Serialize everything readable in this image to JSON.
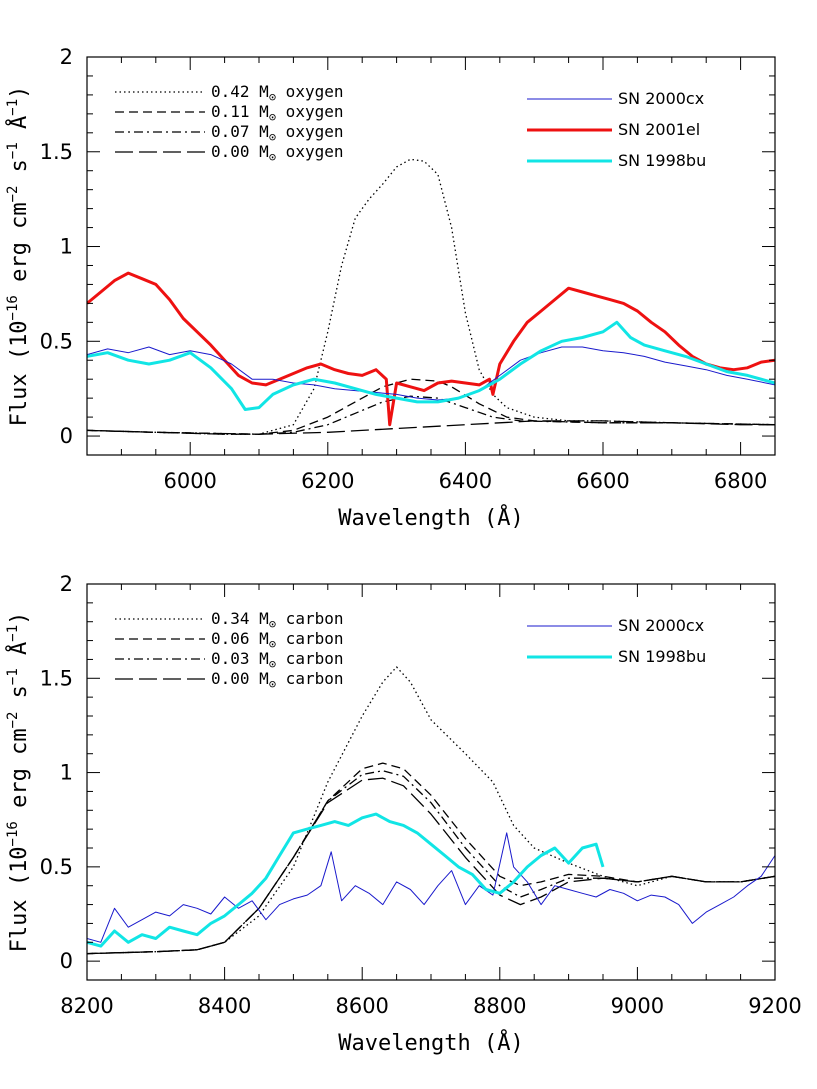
{
  "chart_data": [
    {
      "type": "line",
      "xlabel": "Wavelength (Å)",
      "ylabel_parts": [
        "Flux (10",
        "−16",
        " erg cm",
        "−2",
        " s",
        "−1",
        " Å",
        "−1",
        ")"
      ],
      "xlim": [
        5850,
        6850
      ],
      "ylim": [
        -0.1,
        2.0
      ],
      "xticks_major": [
        6000,
        6200,
        6400,
        6600,
        6800
      ],
      "xticks_minor_step": 50,
      "yticks_major": [
        0,
        0.5,
        1,
        1.5,
        2
      ],
      "ytick_labels": [
        "0",
        "0.5",
        "1",
        "1.5",
        "2"
      ],
      "yticks_minor_step": 0.1,
      "xtick_labels": [
        "6000",
        "6200",
        "6400",
        "6600",
        "6800"
      ],
      "legend_models": [
        {
          "value": "0.42",
          "unit": "M",
          "element": "oxygen",
          "style": "dotted"
        },
        {
          "value": "0.11",
          "unit": "M",
          "element": "oxygen",
          "style": "dashed"
        },
        {
          "value": "0.07",
          "unit": "M",
          "element": "oxygen",
          "style": "dashdot"
        },
        {
          "value": "0.00",
          "unit": "M",
          "element": "oxygen",
          "style": "longdash"
        }
      ],
      "legend_observed": [
        {
          "name": "SN 2000cx",
          "color": "#1a1acc",
          "width": 1
        },
        {
          "name": "SN 2001el",
          "color": "#ee1111",
          "width": 3
        },
        {
          "name": "SN 1998bu",
          "color": "#11e5e5",
          "width": 3
        }
      ],
      "series": [
        {
          "label": "0.42 M⊙ oxygen",
          "style": "dotted",
          "color": "#000000",
          "x": [
            5850,
            5950,
            6050,
            6100,
            6150,
            6180,
            6200,
            6220,
            6240,
            6260,
            6280,
            6300,
            6320,
            6340,
            6360,
            6380,
            6400,
            6420,
            6440,
            6460,
            6500,
            6550,
            6600,
            6700,
            6850
          ],
          "y": [
            0.03,
            0.02,
            0.01,
            0.01,
            0.06,
            0.25,
            0.55,
            0.9,
            1.15,
            1.25,
            1.33,
            1.42,
            1.46,
            1.45,
            1.38,
            1.1,
            0.65,
            0.35,
            0.22,
            0.15,
            0.1,
            0.08,
            0.08,
            0.07,
            0.06
          ]
        },
        {
          "label": "0.11 M⊙ oxygen",
          "style": "dashed",
          "color": "#000000",
          "x": [
            5850,
            5950,
            6100,
            6150,
            6200,
            6240,
            6280,
            6320,
            6360,
            6380,
            6420,
            6460,
            6500,
            6600,
            6700,
            6850
          ],
          "y": [
            0.03,
            0.02,
            0.01,
            0.03,
            0.1,
            0.18,
            0.26,
            0.3,
            0.29,
            0.26,
            0.17,
            0.1,
            0.08,
            0.07,
            0.07,
            0.06
          ]
        },
        {
          "label": "0.07 M⊙ oxygen",
          "style": "dashdot",
          "color": "#000000",
          "x": [
            5850,
            5950,
            6100,
            6150,
            6200,
            6240,
            6280,
            6320,
            6360,
            6400,
            6440,
            6480,
            6600,
            6700,
            6850
          ],
          "y": [
            0.03,
            0.02,
            0.01,
            0.02,
            0.06,
            0.12,
            0.18,
            0.21,
            0.2,
            0.15,
            0.1,
            0.08,
            0.07,
            0.07,
            0.06
          ]
        },
        {
          "label": "0.00 M⊙ oxygen",
          "style": "longdash",
          "color": "#000000",
          "x": [
            5850,
            5950,
            6050,
            6100,
            6200,
            6300,
            6400,
            6500,
            6600,
            6700,
            6800,
            6850
          ],
          "y": [
            0.03,
            0.02,
            0.01,
            0.01,
            0.02,
            0.04,
            0.06,
            0.08,
            0.08,
            0.07,
            0.06,
            0.06
          ]
        },
        {
          "label": "SN 2001el",
          "style": "solid",
          "color": "#ee1111",
          "width": 3,
          "x": [
            5850,
            5870,
            5890,
            5910,
            5930,
            5950,
            5970,
            5990,
            6010,
            6030,
            6050,
            6070,
            6090,
            6110,
            6130,
            6150,
            6170,
            6190,
            6210,
            6230,
            6250,
            6270,
            6285,
            6290,
            6300,
            6320,
            6340,
            6360,
            6380,
            6400,
            6420,
            6435,
            6440,
            6450,
            6470,
            6490,
            6510,
            6530,
            6550,
            6570,
            6590,
            6610,
            6630,
            6650,
            6670,
            6690,
            6710,
            6730,
            6750,
            6770,
            6790,
            6810,
            6830,
            6850
          ],
          "y": [
            0.7,
            0.76,
            0.82,
            0.86,
            0.83,
            0.8,
            0.72,
            0.62,
            0.55,
            0.48,
            0.4,
            0.32,
            0.28,
            0.27,
            0.3,
            0.33,
            0.36,
            0.38,
            0.35,
            0.33,
            0.32,
            0.35,
            0.3,
            0.06,
            0.28,
            0.26,
            0.24,
            0.28,
            0.29,
            0.28,
            0.27,
            0.3,
            0.22,
            0.38,
            0.5,
            0.6,
            0.66,
            0.72,
            0.78,
            0.76,
            0.74,
            0.72,
            0.7,
            0.66,
            0.6,
            0.55,
            0.48,
            0.42,
            0.38,
            0.36,
            0.35,
            0.36,
            0.39,
            0.4
          ]
        },
        {
          "label": "SN 2000cx",
          "style": "solid",
          "color": "#1a1acc",
          "width": 1,
          "x": [
            5850,
            5880,
            5910,
            5940,
            5970,
            6000,
            6030,
            6060,
            6090,
            6120,
            6150,
            6180,
            6210,
            6240,
            6270,
            6300,
            6330,
            6360,
            6390,
            6420,
            6450,
            6480,
            6510,
            6540,
            6570,
            6600,
            6630,
            6660,
            6690,
            6720,
            6750,
            6780,
            6810,
            6850
          ],
          "y": [
            0.43,
            0.46,
            0.44,
            0.47,
            0.43,
            0.45,
            0.43,
            0.38,
            0.3,
            0.3,
            0.28,
            0.27,
            0.25,
            0.24,
            0.23,
            0.22,
            0.2,
            0.19,
            0.2,
            0.24,
            0.32,
            0.4,
            0.44,
            0.47,
            0.47,
            0.45,
            0.44,
            0.42,
            0.39,
            0.37,
            0.35,
            0.32,
            0.3,
            0.27
          ]
        },
        {
          "label": "SN 1998bu",
          "style": "solid",
          "color": "#11e5e5",
          "width": 3,
          "x": [
            5850,
            5880,
            5910,
            5940,
            5970,
            6000,
            6030,
            6060,
            6080,
            6100,
            6120,
            6150,
            6180,
            6210,
            6240,
            6270,
            6300,
            6330,
            6360,
            6390,
            6420,
            6450,
            6480,
            6510,
            6540,
            6570,
            6600,
            6620,
            6640,
            6660,
            6690,
            6720,
            6750,
            6780,
            6810,
            6850
          ],
          "y": [
            0.42,
            0.44,
            0.4,
            0.38,
            0.4,
            0.44,
            0.36,
            0.25,
            0.14,
            0.15,
            0.22,
            0.27,
            0.3,
            0.28,
            0.25,
            0.22,
            0.2,
            0.18,
            0.18,
            0.2,
            0.24,
            0.3,
            0.38,
            0.45,
            0.5,
            0.52,
            0.55,
            0.6,
            0.52,
            0.48,
            0.45,
            0.42,
            0.38,
            0.34,
            0.32,
            0.28
          ]
        }
      ]
    },
    {
      "type": "line",
      "xlabel": "Wavelength (Å)",
      "ylabel_parts": [
        "Flux (10",
        "−16",
        " erg cm",
        "−2",
        " s",
        "−1",
        " Å",
        "−1",
        ")"
      ],
      "xlim": [
        8200,
        9200
      ],
      "ylim": [
        -0.1,
        2.0
      ],
      "xticks_major": [
        8200,
        8400,
        8600,
        8800,
        9000,
        9200
      ],
      "xticks_minor_step": 50,
      "yticks_major": [
        0,
        0.5,
        1,
        1.5,
        2
      ],
      "ytick_labels": [
        "0",
        "0.5",
        "1",
        "1.5",
        "2"
      ],
      "yticks_minor_step": 0.1,
      "xtick_labels": [
        "8200",
        "8400",
        "8600",
        "8800",
        "9000",
        "9200"
      ],
      "legend_models": [
        {
          "value": "0.34",
          "unit": "M",
          "element": "carbon",
          "style": "dotted"
        },
        {
          "value": "0.06",
          "unit": "M",
          "element": "carbon",
          "style": "dashed"
        },
        {
          "value": "0.03",
          "unit": "M",
          "element": "carbon",
          "style": "dashdot"
        },
        {
          "value": "0.00",
          "unit": "M",
          "element": "carbon",
          "style": "longdash"
        }
      ],
      "legend_observed": [
        {
          "name": "SN 2000cx",
          "color": "#1a1acc",
          "width": 1
        },
        {
          "name": "SN 1998bu",
          "color": "#11e5e5",
          "width": 3
        }
      ],
      "series": [
        {
          "label": "0.34 M⊙ carbon",
          "style": "dotted",
          "color": "#000000",
          "x": [
            8200,
            8300,
            8360,
            8400,
            8450,
            8500,
            8550,
            8600,
            8630,
            8650,
            8670,
            8700,
            8750,
            8790,
            8820,
            8850,
            8900,
            8950,
            9000,
            9050,
            9100,
            9150,
            9200
          ],
          "y": [
            0.04,
            0.05,
            0.06,
            0.1,
            0.24,
            0.5,
            0.95,
            1.3,
            1.48,
            1.56,
            1.48,
            1.28,
            1.1,
            0.95,
            0.72,
            0.6,
            0.52,
            0.45,
            0.4,
            0.45,
            0.42,
            0.42,
            0.45
          ]
        },
        {
          "label": "0.06 M⊙ carbon",
          "style": "dashed",
          "color": "#000000",
          "x": [
            8200,
            8300,
            8360,
            8400,
            8450,
            8500,
            8550,
            8600,
            8630,
            8660,
            8700,
            8750,
            8800,
            8830,
            8860,
            8900,
            8950,
            9000,
            9050,
            9100,
            9150,
            9200
          ],
          "y": [
            0.04,
            0.05,
            0.06,
            0.1,
            0.28,
            0.55,
            0.85,
            1.02,
            1.05,
            1.02,
            0.88,
            0.65,
            0.45,
            0.4,
            0.42,
            0.46,
            0.45,
            0.42,
            0.45,
            0.42,
            0.42,
            0.45
          ]
        },
        {
          "label": "0.03 M⊙ carbon",
          "style": "dashdot",
          "color": "#000000",
          "x": [
            8200,
            8300,
            8360,
            8400,
            8450,
            8500,
            8550,
            8600,
            8630,
            8660,
            8700,
            8750,
            8800,
            8830,
            8860,
            8900,
            8950,
            9000,
            9050,
            9100,
            9150,
            9200
          ],
          "y": [
            0.04,
            0.05,
            0.06,
            0.1,
            0.28,
            0.55,
            0.85,
            0.99,
            1.01,
            0.98,
            0.84,
            0.6,
            0.4,
            0.34,
            0.38,
            0.44,
            0.44,
            0.42,
            0.45,
            0.42,
            0.42,
            0.45
          ]
        },
        {
          "label": "0.00 M⊙ carbon",
          "style": "longdash",
          "color": "#000000",
          "x": [
            8200,
            8300,
            8360,
            8400,
            8450,
            8500,
            8550,
            8600,
            8630,
            8660,
            8700,
            8750,
            8800,
            8830,
            8860,
            8900,
            8950,
            9000,
            9050,
            9100,
            9150,
            9200
          ],
          "y": [
            0.04,
            0.05,
            0.06,
            0.1,
            0.28,
            0.55,
            0.84,
            0.96,
            0.97,
            0.93,
            0.78,
            0.55,
            0.35,
            0.3,
            0.34,
            0.42,
            0.44,
            0.42,
            0.45,
            0.42,
            0.42,
            0.45
          ]
        },
        {
          "label": "SN 2000cx",
          "style": "solid",
          "color": "#1a1acc",
          "width": 1,
          "x": [
            8200,
            8220,
            8240,
            8260,
            8280,
            8300,
            8320,
            8340,
            8360,
            8380,
            8400,
            8420,
            8440,
            8460,
            8480,
            8500,
            8520,
            8540,
            8555,
            8570,
            8590,
            8610,
            8630,
            8650,
            8670,
            8690,
            8710,
            8730,
            8750,
            8770,
            8790,
            8810,
            8820,
            8840,
            8860,
            8880,
            8900,
            8920,
            8940,
            8960,
            8980,
            9000,
            9020,
            9040,
            9060,
            9080,
            9100,
            9120,
            9140,
            9160,
            9180,
            9200
          ],
          "y": [
            0.12,
            0.1,
            0.28,
            0.18,
            0.22,
            0.26,
            0.24,
            0.3,
            0.28,
            0.25,
            0.34,
            0.28,
            0.32,
            0.22,
            0.3,
            0.33,
            0.35,
            0.4,
            0.58,
            0.32,
            0.4,
            0.36,
            0.3,
            0.42,
            0.38,
            0.3,
            0.4,
            0.48,
            0.3,
            0.4,
            0.35,
            0.68,
            0.5,
            0.42,
            0.3,
            0.4,
            0.38,
            0.36,
            0.34,
            0.38,
            0.36,
            0.32,
            0.35,
            0.34,
            0.3,
            0.2,
            0.26,
            0.3,
            0.34,
            0.4,
            0.45,
            0.56
          ]
        },
        {
          "label": "SN 1998bu",
          "style": "solid",
          "color": "#11e5e5",
          "width": 3,
          "x": [
            8200,
            8220,
            8240,
            8260,
            8280,
            8300,
            8320,
            8340,
            8360,
            8380,
            8400,
            8420,
            8440,
            8460,
            8480,
            8500,
            8520,
            8540,
            8560,
            8580,
            8600,
            8620,
            8640,
            8660,
            8680,
            8700,
            8720,
            8740,
            8760,
            8780,
            8800,
            8820,
            8840,
            8860,
            8880,
            8900,
            8920,
            8940,
            8950
          ],
          "y": [
            0.1,
            0.08,
            0.16,
            0.1,
            0.14,
            0.12,
            0.18,
            0.16,
            0.14,
            0.2,
            0.24,
            0.3,
            0.36,
            0.44,
            0.56,
            0.68,
            0.7,
            0.72,
            0.74,
            0.72,
            0.76,
            0.78,
            0.74,
            0.72,
            0.68,
            0.62,
            0.56,
            0.5,
            0.46,
            0.38,
            0.36,
            0.42,
            0.5,
            0.56,
            0.6,
            0.52,
            0.6,
            0.62,
            0.5
          ]
        }
      ]
    }
  ]
}
